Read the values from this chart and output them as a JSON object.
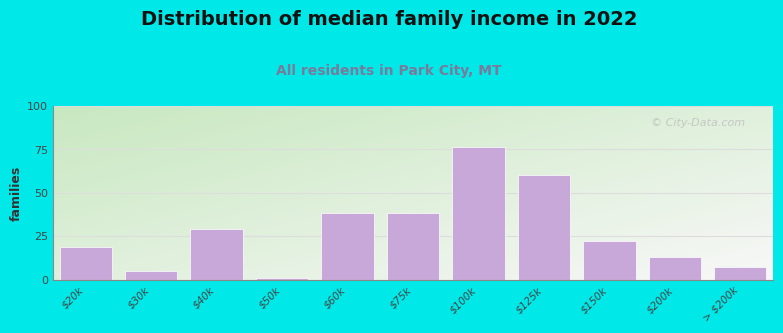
{
  "title": "Distribution of median family income in 2022",
  "subtitle": "All residents in Park City, MT",
  "ylabel": "families",
  "categories": [
    "$20k",
    "$30k",
    "$40k",
    "$50k",
    "$60k",
    "$75k",
    "$100k",
    "$125k",
    "$150k",
    "$200k",
    "> $200k"
  ],
  "values": [
    19,
    5,
    29,
    1,
    38,
    38,
    76,
    60,
    22,
    13,
    7
  ],
  "bar_color": "#c8a8d8",
  "bar_edge_color": "#ffffff",
  "ylim": [
    0,
    100
  ],
  "yticks": [
    0,
    25,
    50,
    75,
    100
  ],
  "background_outer": "#00e8e8",
  "plot_bg_topleft": "#c8e8c0",
  "plot_bg_bottomright": "#f8f8f8",
  "grid_color": "#dddddd",
  "title_fontsize": 14,
  "subtitle_fontsize": 10,
  "subtitle_color": "#7a7a9a",
  "watermark_text": "© City-Data.com",
  "watermark_color": "#c0c0c0"
}
